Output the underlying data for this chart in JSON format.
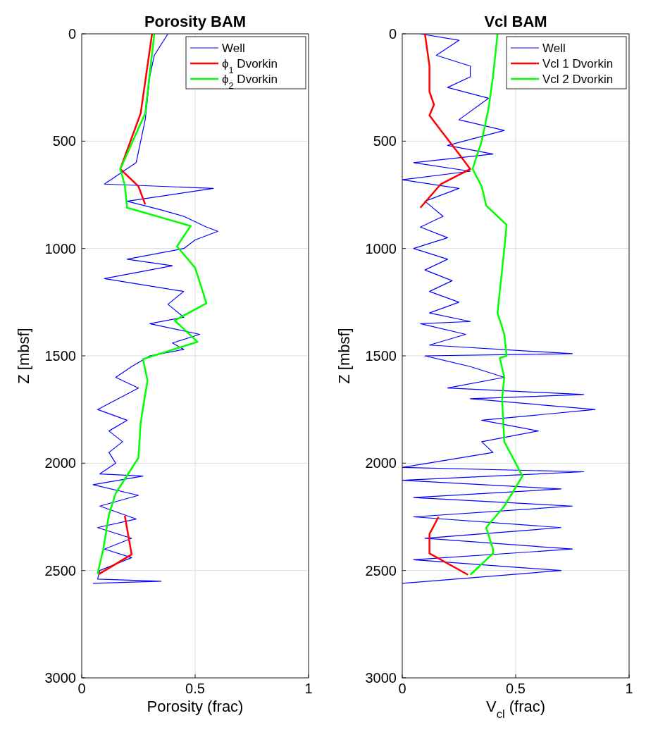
{
  "chart_data": [
    {
      "type": "line",
      "title": "Porosity BAM",
      "xlabel": "Porosity (frac)",
      "ylabel": "Z [mbsf]",
      "xlim": [
        0,
        1
      ],
      "xticks": [
        0,
        0.5,
        1
      ],
      "ylim": [
        3000,
        0
      ],
      "yticks": [
        0,
        500,
        1000,
        1500,
        2000,
        2500,
        3000
      ],
      "grid": true,
      "legend": "top right",
      "line_style": "solid",
      "marker": "none",
      "series": [
        {
          "name": "Well",
          "color": "#0000ff",
          "x": [
            0.38,
            0.32,
            0.3,
            0.28,
            0.26,
            0.24,
            0.1,
            0.58,
            0.2,
            0.35,
            0.45,
            0.55,
            0.6,
            0.5,
            0.45,
            0.2,
            0.4,
            0.1,
            0.45,
            0.38,
            0.45,
            0.3,
            0.52,
            0.4,
            0.45,
            0.3,
            0.22,
            0.15,
            0.25,
            0.07,
            0.2,
            0.12,
            0.18,
            0.12,
            0.15,
            0.08,
            0.27,
            0.05,
            0.25,
            0.08,
            0.24,
            0.07,
            0.22,
            0.1,
            0.22,
            0.08,
            0.07,
            0.35,
            0.05
          ],
          "values": [
            0,
            100,
            200,
            400,
            500,
            600,
            700,
            720,
            780,
            820,
            850,
            900,
            920,
            960,
            1000,
            1050,
            1080,
            1140,
            1200,
            1260,
            1320,
            1350,
            1400,
            1440,
            1470,
            1500,
            1550,
            1600,
            1650,
            1750,
            1800,
            1850,
            1900,
            1950,
            2000,
            2050,
            2060,
            2100,
            2150,
            2200,
            2260,
            2300,
            2350,
            2400,
            2440,
            2500,
            2540,
            2550,
            2560
          ]
        },
        {
          "name": "ϕ$_{1}$ Dvorkin",
          "color": "#ff0000",
          "x": [
            0.31,
            0.26,
            0.17,
            0.25,
            0.28,
            null,
            0.19,
            0.22,
            0.075
          ],
          "values": [
            0,
            370,
            630,
            710,
            795,
            null,
            2245,
            2425,
            2517
          ]
        },
        {
          "name": "ϕ$_{2}$ Dvorkin",
          "color": "#00ff00",
          "x": [
            0.32,
            0.28,
            0.17,
            0.19,
            0.2,
            0.48,
            0.42,
            0.5,
            0.55,
            0.41,
            0.51,
            0.27,
            0.29,
            0.26,
            0.25,
            0.15,
            0.12,
            0.095,
            0.07
          ],
          "values": [
            0,
            370,
            630,
            705,
            810,
            895,
            990,
            1090,
            1255,
            1335,
            1435,
            1515,
            1615,
            1810,
            1975,
            2140,
            2240,
            2400,
            2515
          ]
        }
      ]
    },
    {
      "type": "line",
      "title": "Vcl BAM",
      "xlabel": "V$_{cl}$ (frac)",
      "ylabel": "Z [mbsf]",
      "xlim": [
        0,
        1
      ],
      "xticks": [
        0,
        0.5,
        1
      ],
      "ylim": [
        3000,
        0
      ],
      "yticks": [
        0,
        500,
        1000,
        1500,
        2000,
        2500,
        3000
      ],
      "grid": true,
      "legend": "top right",
      "line_style": "solid",
      "marker": "none",
      "series": [
        {
          "name": "Well",
          "color": "#0000ff",
          "x": [
            0.08,
            0.25,
            0.15,
            0.3,
            0.3,
            0.2,
            0.38,
            0.25,
            0.45,
            0.2,
            0.4,
            0.05,
            0.3,
            0.0,
            0.25,
            0.1,
            0.18,
            0.08,
            0.2,
            0.05,
            0.2,
            0.1,
            0.22,
            0.12,
            0.25,
            0.12,
            0.3,
            0.08,
            0.28,
            0.12,
            0.75,
            0.1,
            0.3,
            0.45,
            0.2,
            0.8,
            0.3,
            0.85,
            0.35,
            0.6,
            0.35,
            0.4,
            0.0,
            0.8,
            0.0,
            0.7,
            0.05,
            0.75,
            0.05,
            0.7,
            0.1,
            0.75,
            0.05,
            0.7,
            0.0
          ],
          "values": [
            0,
            30,
            100,
            150,
            200,
            250,
            300,
            400,
            450,
            520,
            560,
            600,
            640,
            680,
            720,
            780,
            850,
            900,
            950,
            1000,
            1050,
            1100,
            1150,
            1200,
            1250,
            1300,
            1340,
            1350,
            1400,
            1450,
            1490,
            1500,
            1550,
            1600,
            1650,
            1680,
            1700,
            1750,
            1800,
            1850,
            1900,
            1950,
            2020,
            2040,
            2080,
            2120,
            2160,
            2200,
            2250,
            2300,
            2350,
            2400,
            2450,
            2500,
            2560
          ]
        },
        {
          "name": "Vcl 1 Dvorkin",
          "color": "#ff0000",
          "x": [
            0.1,
            0.12,
            0.12,
            0.14,
            0.12,
            0.17,
            0.25,
            0.3,
            0.17,
            0.08,
            null,
            0.16,
            0.12,
            0.12,
            0.29
          ],
          "values": [
            0,
            150,
            270,
            330,
            380,
            450,
            560,
            630,
            700,
            810,
            null,
            2250,
            2330,
            2420,
            2520
          ]
        },
        {
          "name": "Vcl 2 Dvorkin",
          "color": "#00ff00",
          "x": [
            0.42,
            0.4,
            0.38,
            0.35,
            0.31,
            0.35,
            0.37,
            0.46,
            0.45,
            0.44,
            0.42,
            0.45,
            0.46,
            0.43,
            0.45,
            0.44,
            0.45,
            0.53,
            0.45,
            0.37,
            0.4,
            0.4,
            0.3
          ],
          "values": [
            0,
            200,
            350,
            500,
            630,
            710,
            800,
            890,
            1000,
            1100,
            1300,
            1400,
            1500,
            1510,
            1600,
            1700,
            1900,
            2060,
            2200,
            2300,
            2400,
            2420,
            2520
          ]
        }
      ]
    }
  ]
}
